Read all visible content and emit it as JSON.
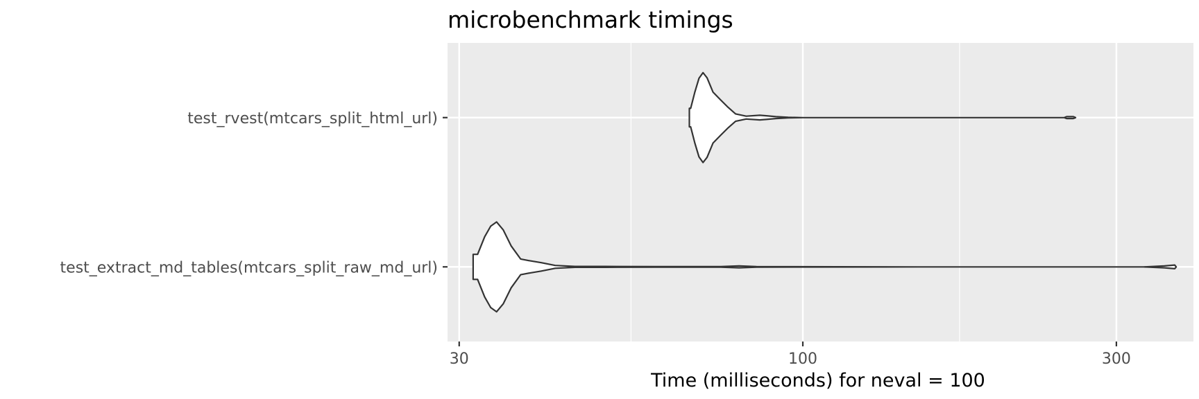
{
  "chart_data": {
    "type": "violin",
    "title": "microbenchmark timings",
    "xlabel": "Time (milliseconds) for neval = 100",
    "ylabel": "",
    "x_scale": "log10",
    "xlim": [
      28.8,
      393
    ],
    "x_ticks": [
      30,
      100,
      300
    ],
    "x_tick_labels": [
      "30",
      "100",
      "300"
    ],
    "grid": true,
    "legend": "none",
    "categories": [
      "test_rvest(mtcars_split_html_url)",
      "test_extract_md_tables(mtcars_split_raw_md_url)"
    ],
    "series": [
      {
        "category": "test_rvest(mtcars_split_html_url)",
        "profile": [
          [
            67.5,
            0.2
          ],
          [
            68.5,
            0.55
          ],
          [
            69.5,
            0.85
          ],
          [
            70.5,
            0.97
          ],
          [
            71.5,
            0.86
          ],
          [
            73.0,
            0.55
          ],
          [
            75.0,
            0.38
          ],
          [
            77.0,
            0.22
          ],
          [
            79.0,
            0.08
          ],
          [
            82.0,
            0.03
          ],
          [
            86.0,
            0.05
          ],
          [
            88.0,
            0.04
          ],
          [
            91.0,
            0.02
          ],
          [
            95.0,
            0.005
          ],
          [
            100.0,
            0.0
          ],
          [
            150.0,
            0.0
          ],
          [
            250.0,
            0.0
          ],
          [
            252.0,
            0.02
          ],
          [
            258.0,
            0.02
          ],
          [
            260.0,
            0.0
          ]
        ],
        "min": 67.2,
        "max": 260
      },
      {
        "category": "test_extract_md_tables(mtcars_split_raw_md_url)",
        "profile": [
          [
            32.0,
            0.27
          ],
          [
            32.8,
            0.65
          ],
          [
            33.5,
            0.88
          ],
          [
            34.2,
            0.97
          ],
          [
            35.0,
            0.8
          ],
          [
            36.0,
            0.45
          ],
          [
            37.2,
            0.17
          ],
          [
            38.5,
            0.13
          ],
          [
            40.0,
            0.09
          ],
          [
            42.0,
            0.03
          ],
          [
            45.0,
            0.01
          ],
          [
            50.0,
            0.01
          ],
          [
            60.0,
            0.005
          ],
          [
            75.0,
            0.005
          ],
          [
            80.0,
            0.02
          ],
          [
            85.0,
            0.005
          ],
          [
            150.0,
            0.0
          ],
          [
            330.0,
            0.0
          ],
          [
            355.0,
            0.02
          ],
          [
            368.0,
            0.04
          ],
          [
            370.0,
            0.0
          ]
        ],
        "min": 31.5,
        "max": 370
      }
    ],
    "colors": {
      "panel": "#ebebeb",
      "grid": "#ffffff",
      "violin_fill": "#ffffff",
      "violin_stroke": "#333333",
      "tick": "#333333"
    }
  }
}
